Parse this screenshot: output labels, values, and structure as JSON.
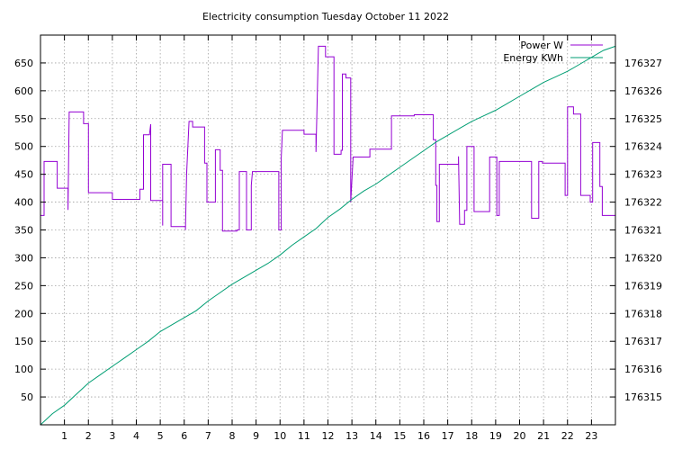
{
  "chart_data": {
    "type": "line",
    "title": "Electricity consumption Tuesday October 11 2022",
    "xlabel": "",
    "ylabel": "",
    "y2label": "",
    "grid": true,
    "legend_position": "top-right",
    "xlim": [
      0,
      24
    ],
    "ylim": [
      0,
      700
    ],
    "y2lim": [
      176314,
      176328
    ],
    "x_ticks": [
      1,
      2,
      3,
      4,
      5,
      6,
      7,
      8,
      9,
      10,
      11,
      12,
      13,
      14,
      15,
      16,
      17,
      18,
      19,
      20,
      21,
      22,
      23
    ],
    "y_ticks": [
      50,
      100,
      150,
      200,
      250,
      300,
      350,
      400,
      450,
      500,
      550,
      600,
      650
    ],
    "y2_ticks": [
      176315,
      176316,
      176317,
      176318,
      176319,
      176320,
      176321,
      176322,
      176323,
      176324,
      176325,
      176326,
      176327
    ],
    "series": [
      {
        "name": "Power W",
        "axis": "y1",
        "color": "#9400d3",
        "step": true,
        "points": [
          [
            0.0,
            376
          ],
          [
            0.15,
            376
          ],
          [
            0.15,
            473
          ],
          [
            0.7,
            473
          ],
          [
            0.7,
            425
          ],
          [
            1.15,
            425
          ],
          [
            1.15,
            386
          ],
          [
            1.2,
            562
          ],
          [
            1.8,
            562
          ],
          [
            1.8,
            541
          ],
          [
            2.0,
            541
          ],
          [
            2.0,
            417
          ],
          [
            3.0,
            417
          ],
          [
            3.0,
            405
          ],
          [
            4.15,
            405
          ],
          [
            4.15,
            423
          ],
          [
            4.3,
            423
          ],
          [
            4.3,
            521
          ],
          [
            4.55,
            521
          ],
          [
            4.6,
            540
          ],
          [
            4.6,
            403
          ],
          [
            5.1,
            403
          ],
          [
            5.1,
            358
          ],
          [
            5.1,
            468
          ],
          [
            5.45,
            468
          ],
          [
            5.45,
            356
          ],
          [
            6.05,
            356
          ],
          [
            6.05,
            350
          ],
          [
            6.1,
            450
          ],
          [
            6.2,
            545
          ],
          [
            6.35,
            545
          ],
          [
            6.35,
            535
          ],
          [
            6.85,
            535
          ],
          [
            6.85,
            470
          ],
          [
            6.95,
            470
          ],
          [
            6.95,
            400
          ],
          [
            7.3,
            400
          ],
          [
            7.3,
            494
          ],
          [
            7.5,
            494
          ],
          [
            7.5,
            457
          ],
          [
            7.6,
            457
          ],
          [
            7.6,
            348
          ],
          [
            8.2,
            348
          ],
          [
            8.2,
            350
          ],
          [
            8.3,
            350
          ],
          [
            8.3,
            455
          ],
          [
            8.6,
            455
          ],
          [
            8.6,
            350
          ],
          [
            8.8,
            350
          ],
          [
            8.8,
            430
          ],
          [
            8.85,
            455
          ],
          [
            9.95,
            455
          ],
          [
            9.95,
            350
          ],
          [
            10.05,
            350
          ],
          [
            10.05,
            480
          ],
          [
            10.1,
            529
          ],
          [
            11.0,
            529
          ],
          [
            11.0,
            522
          ],
          [
            11.5,
            522
          ],
          [
            11.5,
            490
          ],
          [
            11.6,
            680
          ],
          [
            11.9,
            680
          ],
          [
            11.9,
            661
          ],
          [
            12.25,
            661
          ],
          [
            12.25,
            486
          ],
          [
            12.55,
            486
          ],
          [
            12.55,
            493
          ],
          [
            12.6,
            493
          ],
          [
            12.6,
            630
          ],
          [
            12.75,
            630
          ],
          [
            12.75,
            623
          ],
          [
            12.95,
            623
          ],
          [
            12.95,
            400
          ],
          [
            13.05,
            481
          ],
          [
            13.75,
            481
          ],
          [
            13.75,
            495
          ],
          [
            14.65,
            495
          ],
          [
            14.65,
            555
          ],
          [
            15.6,
            555
          ],
          [
            15.6,
            557
          ],
          [
            16.4,
            557
          ],
          [
            16.4,
            512
          ],
          [
            16.5,
            512
          ],
          [
            16.5,
            430
          ],
          [
            16.55,
            430
          ],
          [
            16.55,
            365
          ],
          [
            16.65,
            365
          ],
          [
            16.65,
            468
          ],
          [
            17.45,
            468
          ],
          [
            17.45,
            482
          ],
          [
            17.5,
            360
          ],
          [
            17.7,
            360
          ],
          [
            17.7,
            385
          ],
          [
            17.8,
            385
          ],
          [
            17.8,
            500
          ],
          [
            18.1,
            500
          ],
          [
            18.1,
            383
          ],
          [
            18.75,
            383
          ],
          [
            18.75,
            481
          ],
          [
            19.05,
            481
          ],
          [
            19.05,
            376
          ],
          [
            19.15,
            376
          ],
          [
            19.15,
            473
          ],
          [
            20.5,
            473
          ],
          [
            20.5,
            371
          ],
          [
            20.8,
            371
          ],
          [
            20.8,
            473
          ],
          [
            20.95,
            473
          ],
          [
            20.95,
            470
          ],
          [
            21.9,
            470
          ],
          [
            21.9,
            412
          ],
          [
            22.0,
            412
          ],
          [
            22.0,
            571
          ],
          [
            22.25,
            571
          ],
          [
            22.25,
            558
          ],
          [
            22.55,
            558
          ],
          [
            22.55,
            412
          ],
          [
            22.95,
            412
          ],
          [
            22.95,
            400
          ],
          [
            23.05,
            400
          ],
          [
            23.05,
            507
          ],
          [
            23.35,
            507
          ],
          [
            23.35,
            428
          ],
          [
            23.45,
            428
          ],
          [
            23.45,
            376
          ],
          [
            24.0,
            376
          ]
        ]
      },
      {
        "name": "Energy KWh",
        "axis": "y2",
        "color": "#009e73",
        "step": false,
        "points": [
          [
            0.0,
            176314.0
          ],
          [
            0.5,
            176314.4
          ],
          [
            1.0,
            176314.7
          ],
          [
            1.5,
            176315.1
          ],
          [
            2.0,
            176315.5
          ],
          [
            2.5,
            176315.8
          ],
          [
            3.0,
            176316.1
          ],
          [
            3.5,
            176316.4
          ],
          [
            4.0,
            176316.7
          ],
          [
            4.5,
            176317.0
          ],
          [
            5.0,
            176317.35
          ],
          [
            5.5,
            176317.6
          ],
          [
            6.0,
            176317.85
          ],
          [
            6.5,
            176318.1
          ],
          [
            7.0,
            176318.45
          ],
          [
            7.5,
            176318.75
          ],
          [
            8.0,
            176319.05
          ],
          [
            8.5,
            176319.3
          ],
          [
            9.0,
            176319.55
          ],
          [
            9.5,
            176319.8
          ],
          [
            10.0,
            176320.1
          ],
          [
            10.5,
            176320.45
          ],
          [
            11.0,
            176320.75
          ],
          [
            11.5,
            176321.05
          ],
          [
            12.0,
            176321.45
          ],
          [
            12.5,
            176321.75
          ],
          [
            13.0,
            176322.1
          ],
          [
            13.5,
            176322.4
          ],
          [
            14.0,
            176322.65
          ],
          [
            14.5,
            176322.95
          ],
          [
            15.0,
            176323.25
          ],
          [
            15.5,
            176323.55
          ],
          [
            16.0,
            176323.85
          ],
          [
            16.5,
            176324.15
          ],
          [
            17.0,
            176324.4
          ],
          [
            17.5,
            176324.65
          ],
          [
            18.0,
            176324.9
          ],
          [
            18.5,
            176325.1
          ],
          [
            19.0,
            176325.3
          ],
          [
            19.5,
            176325.55
          ],
          [
            20.0,
            176325.8
          ],
          [
            20.5,
            176326.05
          ],
          [
            21.0,
            176326.3
          ],
          [
            21.5,
            176326.5
          ],
          [
            22.0,
            176326.7
          ],
          [
            22.5,
            176326.95
          ],
          [
            23.0,
            176327.2
          ],
          [
            23.5,
            176327.45
          ],
          [
            24.0,
            176327.6
          ]
        ]
      }
    ]
  }
}
